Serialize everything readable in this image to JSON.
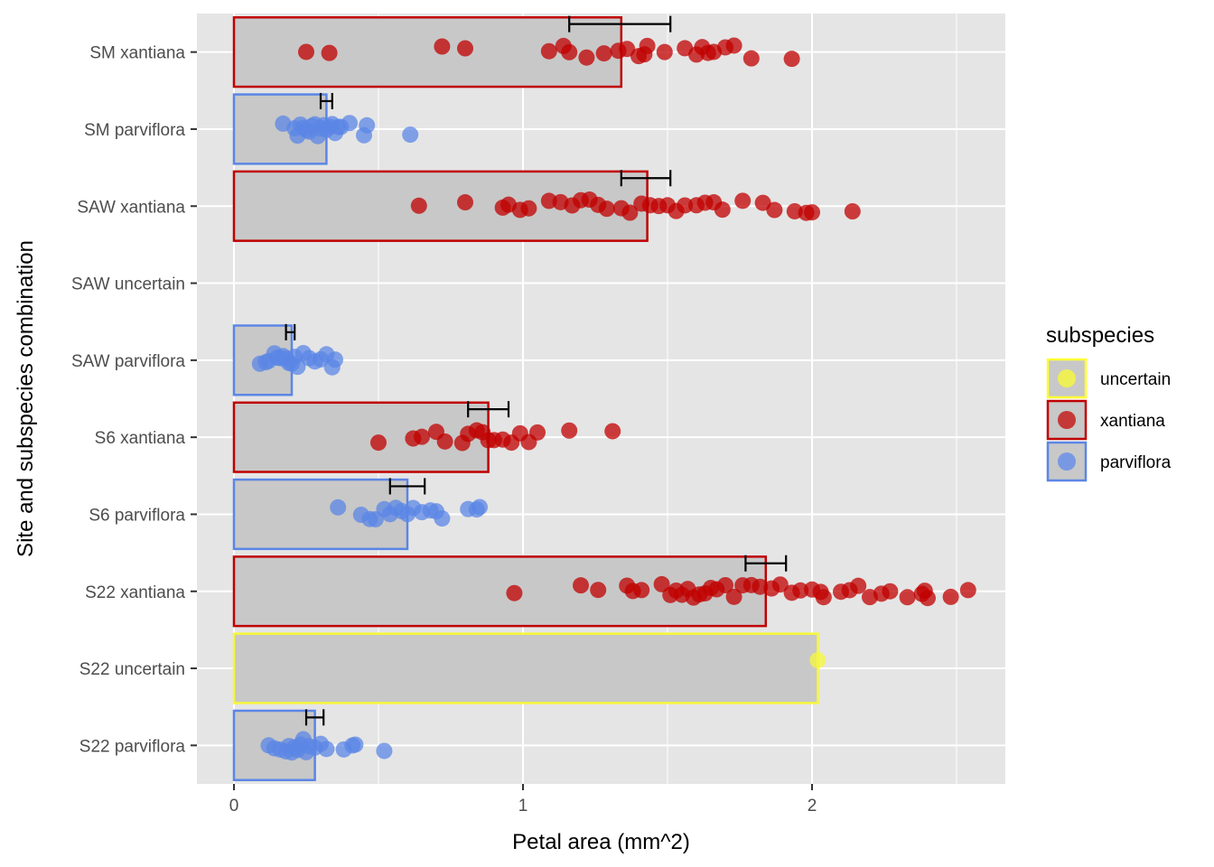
{
  "chart_data": {
    "type": "bar",
    "orientation": "horizontal",
    "xlabel": "Petal area (mm^2)",
    "ylabel": "Site and subspecies combination",
    "xlim": [
      -0.13,
      2.67
    ],
    "x_ticks": [
      0,
      1,
      2
    ],
    "grid": true,
    "legend": {
      "title": "subspecies",
      "position": "right",
      "entries": [
        {
          "label": "uncertain",
          "color": "#ffff33",
          "fill": "#f5f542"
        },
        {
          "label": "xantiana",
          "color": "#c00000",
          "fill": "#c41e1e"
        },
        {
          "label": "parviflora",
          "color": "#5b86e5",
          "fill": "#6b8fe8"
        }
      ]
    },
    "colors": {
      "uncertain": "#f7f73a",
      "xantiana": "#c00000",
      "parviflora": "#5b86e5",
      "bar_fill": "#c8c8c8",
      "panel": "#e5e5e5",
      "grid": "#ffffff",
      "errorbar": "#000000"
    },
    "categories": [
      "S22 parviflora",
      "S22 uncertain",
      "S22 xantiana",
      "S6 parviflora",
      "S6 xantiana",
      "SAW parviflora",
      "SAW uncertain",
      "SAW xantiana",
      "SM parviflora",
      "SM xantiana"
    ],
    "bars": [
      {
        "category": "SM xantiana",
        "subspecies": "xantiana",
        "mean": 1.34,
        "err_low": 1.16,
        "err_high": 1.51,
        "points": [
          0.25,
          0.33,
          0.72,
          0.8,
          1.09,
          1.16,
          1.14,
          1.22,
          1.28,
          1.33,
          1.36,
          1.4,
          1.42,
          1.43,
          1.49,
          1.56,
          1.6,
          1.62,
          1.64,
          1.66,
          1.7,
          1.73,
          1.79,
          1.93
        ]
      },
      {
        "category": "SM parviflora",
        "subspecies": "parviflora",
        "mean": 0.32,
        "err_low": 0.3,
        "err_high": 0.34,
        "points": [
          0.17,
          0.21,
          0.22,
          0.23,
          0.24,
          0.25,
          0.26,
          0.27,
          0.28,
          0.29,
          0.3,
          0.31,
          0.32,
          0.33,
          0.34,
          0.35,
          0.36,
          0.37,
          0.4,
          0.45,
          0.46,
          0.61
        ]
      },
      {
        "category": "SAW xantiana",
        "subspecies": "xantiana",
        "mean": 1.43,
        "err_low": 1.34,
        "err_high": 1.51,
        "points": [
          0.64,
          0.8,
          0.93,
          0.95,
          0.99,
          1.02,
          1.09,
          1.13,
          1.17,
          1.2,
          1.23,
          1.26,
          1.29,
          1.34,
          1.37,
          1.41,
          1.44,
          1.47,
          1.5,
          1.53,
          1.56,
          1.6,
          1.63,
          1.66,
          1.69,
          1.76,
          1.83,
          1.87,
          1.94,
          1.98,
          2.0,
          2.14
        ]
      },
      {
        "category": "SAW uncertain",
        "subspecies": "uncertain",
        "mean": null,
        "err_low": null,
        "err_high": null,
        "points": []
      },
      {
        "category": "SAW parviflora",
        "subspecies": "parviflora",
        "mean": 0.2,
        "err_low": 0.18,
        "err_high": 0.21,
        "points": [
          0.09,
          0.11,
          0.12,
          0.14,
          0.15,
          0.16,
          0.17,
          0.18,
          0.19,
          0.2,
          0.21,
          0.22,
          0.24,
          0.26,
          0.28,
          0.3,
          0.32,
          0.34,
          0.35
        ]
      },
      {
        "category": "S6 xantiana",
        "subspecies": "xantiana",
        "mean": 0.88,
        "err_low": 0.81,
        "err_high": 0.95,
        "points": [
          0.5,
          0.62,
          0.65,
          0.7,
          0.73,
          0.79,
          0.81,
          0.84,
          0.86,
          0.88,
          0.9,
          0.93,
          0.96,
          0.99,
          1.02,
          1.05,
          1.16,
          1.31
        ]
      },
      {
        "category": "S6 parviflora",
        "subspecies": "parviflora",
        "mean": 0.6,
        "err_low": 0.54,
        "err_high": 0.66,
        "points": [
          0.36,
          0.44,
          0.47,
          0.49,
          0.52,
          0.54,
          0.56,
          0.58,
          0.6,
          0.62,
          0.65,
          0.68,
          0.7,
          0.72,
          0.81,
          0.84,
          0.85
        ]
      },
      {
        "category": "S22 xantiana",
        "subspecies": "xantiana",
        "mean": 1.84,
        "err_low": 1.77,
        "err_high": 1.91,
        "points": [
          0.97,
          1.2,
          1.26,
          1.36,
          1.38,
          1.41,
          1.48,
          1.51,
          1.53,
          1.55,
          1.57,
          1.59,
          1.61,
          1.63,
          1.65,
          1.67,
          1.7,
          1.73,
          1.76,
          1.79,
          1.82,
          1.86,
          1.89,
          1.93,
          1.96,
          2.0,
          2.03,
          2.04,
          2.1,
          2.13,
          2.16,
          2.2,
          2.24,
          2.27,
          2.33,
          2.38,
          2.39,
          2.4,
          2.48,
          2.54
        ]
      },
      {
        "category": "S22 uncertain",
        "subspecies": "uncertain",
        "mean": 2.02,
        "err_low": null,
        "err_high": null,
        "points": [
          2.02
        ]
      },
      {
        "category": "S22 parviflora",
        "subspecies": "parviflora",
        "mean": 0.28,
        "err_low": 0.25,
        "err_high": 0.31,
        "points": [
          0.12,
          0.14,
          0.16,
          0.18,
          0.19,
          0.2,
          0.21,
          0.22,
          0.23,
          0.24,
          0.25,
          0.26,
          0.28,
          0.3,
          0.32,
          0.38,
          0.41,
          0.42,
          0.52
        ]
      }
    ]
  }
}
